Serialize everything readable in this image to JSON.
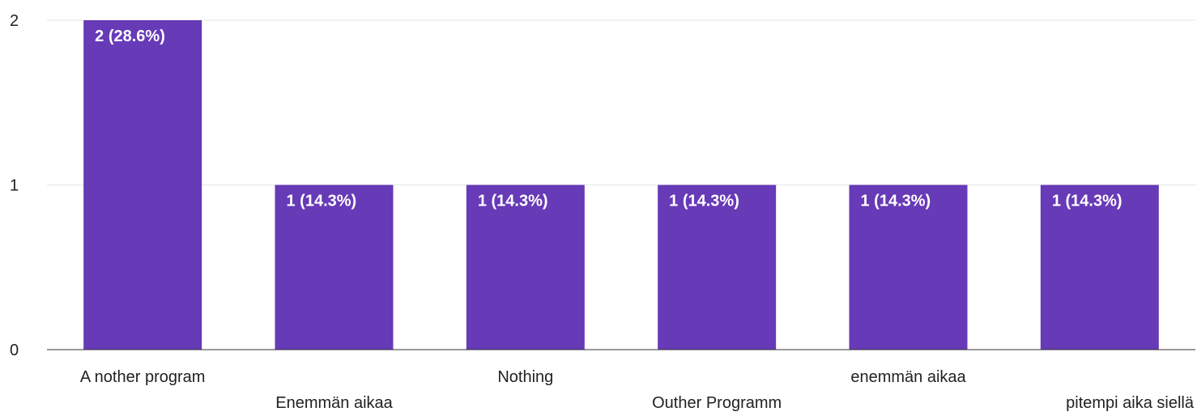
{
  "chart_data": {
    "type": "bar",
    "categories": [
      "A nother program",
      "Enemmän aikaa",
      "Nothing",
      "Outher Programm",
      "enemmän aikaa",
      "pitempi aika siellä"
    ],
    "values": [
      2,
      1,
      1,
      1,
      1,
      1
    ],
    "data_labels": [
      "2 (28.6%)",
      "1 (14.3%)",
      "1 (14.3%)",
      "1 (14.3%)",
      "1 (14.3%)",
      "1 (14.3%)"
    ],
    "ylim": [
      0,
      2
    ],
    "yticks": [
      0,
      1,
      2
    ],
    "grid": true,
    "bar_color": "#673ab7",
    "title": "",
    "xlabel": "",
    "ylabel": ""
  }
}
